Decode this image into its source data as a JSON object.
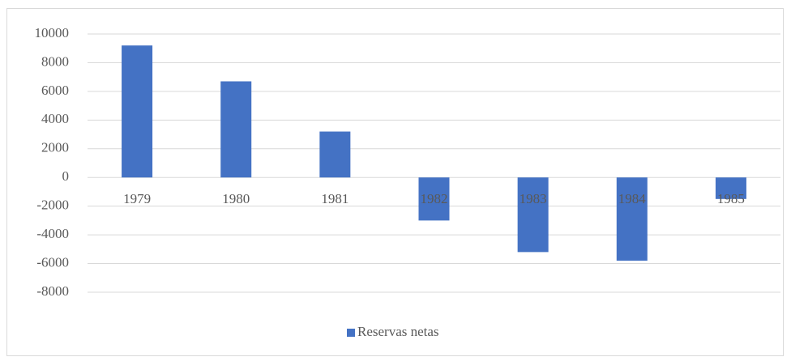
{
  "chart_data": {
    "type": "bar",
    "categories": [
      "1979",
      "1980",
      "1981",
      "1982",
      "1983",
      "1984",
      "1985"
    ],
    "series": [
      {
        "name": "Reservas netas",
        "color": "#4472c4",
        "values": [
          9200,
          6700,
          3200,
          -3000,
          -5200,
          -5800,
          -1500
        ]
      }
    ],
    "ylim": [
      -8000,
      10000
    ],
    "yticks": [
      -8000,
      -6000,
      -4000,
      -2000,
      0,
      2000,
      4000,
      6000,
      8000,
      10000
    ],
    "grid": true,
    "legend": "bottom"
  }
}
